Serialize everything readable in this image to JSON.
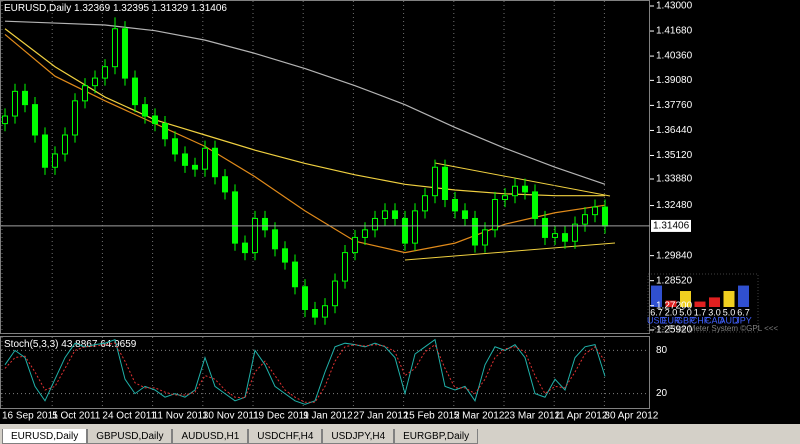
{
  "header": {
    "symbol": "EURUSD,Daily",
    "ohlc": [
      1.32369,
      1.32395,
      1.31329,
      1.31406
    ]
  },
  "price_axis": {
    "ylim": [
      1.2592,
      1.43
    ],
    "ticks": [
      {
        "value": 1.43,
        "label": "1.43000"
      },
      {
        "value": 1.4168,
        "label": "1.41680"
      },
      {
        "value": 1.4036,
        "label": "1.40360"
      },
      {
        "value": 1.3908,
        "label": "1.39080"
      },
      {
        "value": 1.3776,
        "label": "1.37760"
      },
      {
        "value": 1.3644,
        "label": "1.36440"
      },
      {
        "value": 1.3512,
        "label": "1.35120"
      },
      {
        "value": 1.3388,
        "label": "1.33880"
      },
      {
        "value": 1.3248,
        "label": "1.32480"
      },
      {
        "value": 1.2984,
        "label": "1.29840"
      },
      {
        "value": 1.2852,
        "label": "1.28520"
      },
      {
        "value": 1.272,
        "label": "1.27200"
      },
      {
        "value": 1.2592,
        "label": "1.25920"
      }
    ],
    "current": 1.31406
  },
  "candles": [
    [
      1.368,
      1.376,
      1.364,
      1.372
    ],
    [
      1.372,
      1.389,
      1.368,
      1.385
    ],
    [
      1.385,
      1.389,
      1.374,
      1.378
    ],
    [
      1.378,
      1.382,
      1.358,
      1.362
    ],
    [
      1.362,
      1.366,
      1.341,
      1.345
    ],
    [
      1.345,
      1.356,
      1.341,
      1.352
    ],
    [
      1.352,
      1.366,
      1.348,
      1.362
    ],
    [
      1.362,
      1.384,
      1.358,
      1.38
    ],
    [
      1.38,
      1.392,
      1.376,
      1.388
    ],
    [
      1.388,
      1.396,
      1.384,
      1.392
    ],
    [
      1.392,
      1.402,
      1.388,
      1.398
    ],
    [
      1.398,
      1.424,
      1.394,
      1.418
    ],
    [
      1.418,
      1.422,
      1.388,
      1.392
    ],
    [
      1.392,
      1.396,
      1.374,
      1.378
    ],
    [
      1.378,
      1.382,
      1.368,
      1.372
    ],
    [
      1.372,
      1.376,
      1.364,
      1.368
    ],
    [
      1.368,
      1.372,
      1.356,
      1.36
    ],
    [
      1.36,
      1.364,
      1.348,
      1.352
    ],
    [
      1.352,
      1.356,
      1.342,
      1.346
    ],
    [
      1.346,
      1.35,
      1.34,
      1.344
    ],
    [
      1.344,
      1.359,
      1.34,
      1.355
    ],
    [
      1.355,
      1.359,
      1.336,
      1.34
    ],
    [
      1.34,
      1.344,
      1.328,
      1.332
    ],
    [
      1.332,
      1.336,
      1.301,
      1.305
    ],
    [
      1.305,
      1.309,
      1.296,
      1.3
    ],
    [
      1.3,
      1.322,
      1.296,
      1.318
    ],
    [
      1.318,
      1.322,
      1.308,
      1.312
    ],
    [
      1.312,
      1.316,
      1.298,
      1.302
    ],
    [
      1.302,
      1.306,
      1.291,
      1.295
    ],
    [
      1.295,
      1.299,
      1.278,
      1.282
    ],
    [
      1.282,
      1.286,
      1.266,
      1.27
    ],
    [
      1.27,
      1.274,
      1.262,
      1.266
    ],
    [
      1.266,
      1.276,
      1.262,
      1.272
    ],
    [
      1.272,
      1.289,
      1.268,
      1.285
    ],
    [
      1.285,
      1.304,
      1.281,
      1.3
    ],
    [
      1.3,
      1.312,
      1.296,
      1.308
    ],
    [
      1.308,
      1.316,
      1.304,
      1.312
    ],
    [
      1.312,
      1.322,
      1.308,
      1.318
    ],
    [
      1.318,
      1.326,
      1.314,
      1.322
    ],
    [
      1.322,
      1.326,
      1.314,
      1.318
    ],
    [
      1.318,
      1.322,
      1.301,
      1.305
    ],
    [
      1.305,
      1.326,
      1.301,
      1.322
    ],
    [
      1.322,
      1.334,
      1.318,
      1.33
    ],
    [
      1.33,
      1.349,
      1.326,
      1.345
    ],
    [
      1.345,
      1.349,
      1.324,
      1.328
    ],
    [
      1.328,
      1.332,
      1.318,
      1.322
    ],
    [
      1.322,
      1.326,
      1.314,
      1.318
    ],
    [
      1.318,
      1.322,
      1.3,
      1.304
    ],
    [
      1.304,
      1.316,
      1.3,
      1.312
    ],
    [
      1.312,
      1.332,
      1.308,
      1.328
    ],
    [
      1.328,
      1.334,
      1.324,
      1.33
    ],
    [
      1.33,
      1.339,
      1.326,
      1.335
    ],
    [
      1.335,
      1.339,
      1.328,
      1.332
    ],
    [
      1.332,
      1.336,
      1.314,
      1.318
    ],
    [
      1.318,
      1.322,
      1.304,
      1.308
    ],
    [
      1.308,
      1.314,
      1.304,
      1.31
    ],
    [
      1.31,
      1.314,
      1.302,
      1.306
    ],
    [
      1.306,
      1.319,
      1.302,
      1.315
    ],
    [
      1.315,
      1.324,
      1.311,
      1.32
    ],
    [
      1.32,
      1.328,
      1.316,
      1.324
    ],
    [
      1.324,
      1.328,
      1.31,
      1.314
    ]
  ],
  "moving_averages": [
    {
      "color": "#b4b4b4",
      "values": [
        1.422,
        1.421,
        1.42,
        1.417,
        1.412,
        1.405,
        1.397,
        1.388,
        1.378,
        1.366,
        1.355,
        1.345,
        1.336
      ]
    },
    {
      "color": "#f0d040",
      "values": [
        1.418,
        1.398,
        1.382,
        1.37,
        1.362,
        1.354,
        1.347,
        1.341,
        1.336,
        1.333,
        1.331,
        1.33,
        1.33
      ]
    },
    {
      "color": "#e08a1a",
      "values": [
        1.415,
        1.393,
        1.38,
        1.368,
        1.356,
        1.34,
        1.322,
        1.306,
        1.3,
        1.305,
        1.315,
        1.321,
        1.325
      ]
    }
  ],
  "dates": [
    "16 Sep 2011",
    "5 Oct 2011",
    "24 Oct 2011",
    "11 Nov 2011",
    "30 Nov 2011",
    "19 Dec 2011",
    "9 Jan 2012",
    "27 Jan 2012",
    "15 Feb 2012",
    "5 Mar 2012",
    "23 Mar 2012",
    "11 Apr 2012",
    "30 Apr 2012"
  ],
  "stochastic": {
    "title": "Stoch(5,3,3)",
    "ylim": [
      0,
      100
    ],
    "ticks": [
      80,
      20
    ],
    "main": [
      60,
      80,
      70,
      30,
      10,
      40,
      70,
      90,
      85,
      88,
      90,
      95,
      40,
      20,
      30,
      25,
      15,
      20,
      15,
      25,
      70,
      30,
      20,
      10,
      15,
      80,
      60,
      30,
      20,
      10,
      5,
      10,
      50,
      85,
      90,
      88,
      85,
      90,
      85,
      70,
      20,
      75,
      85,
      95,
      30,
      25,
      30,
      10,
      60,
      85,
      80,
      88,
      70,
      20,
      15,
      40,
      25,
      70,
      85,
      88,
      43.8867
    ],
    "signal": [
      55,
      70,
      72,
      50,
      25,
      30,
      55,
      80,
      85,
      86,
      88,
      90,
      65,
      35,
      28,
      28,
      22,
      18,
      18,
      22,
      45,
      40,
      25,
      15,
      14,
      50,
      65,
      45,
      25,
      15,
      8,
      8,
      30,
      65,
      85,
      88,
      86,
      88,
      86,
      78,
      45,
      55,
      78,
      88,
      55,
      28,
      28,
      20,
      40,
      70,
      82,
      85,
      78,
      45,
      20,
      30,
      28,
      50,
      75,
      85,
      64.9659
    ]
  },
  "price_meter": {
    "values": [
      6.7,
      2.0,
      5.0,
      1.7,
      3.0,
      5.0,
      6.7
    ],
    "value_labels": [
      "6.7",
      "2.0",
      "5.0",
      "1.7",
      "3.0",
      "5.0",
      "6.7"
    ],
    "currencies": [
      "USD",
      "EUR",
      "GBP",
      "CHF",
      "CAD",
      "AUD",
      "JPY"
    ],
    "footer": ">>> Price Meter System ©GPL <<<"
  },
  "tabs": [
    "EURUSD,Daily",
    "GBPUSD,Daily",
    "AUDUSD,H1",
    "USDCHF,H4",
    "USDJPY,H4",
    "EURGBP,Daily"
  ]
}
